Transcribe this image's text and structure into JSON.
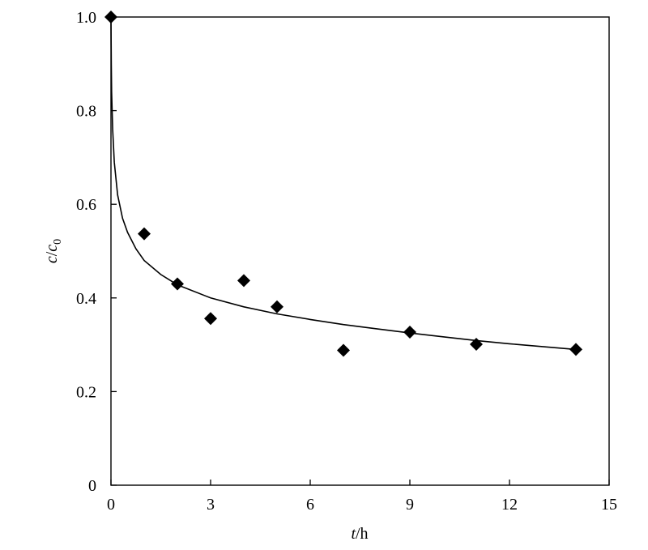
{
  "chart_data": {
    "type": "scatter",
    "title": "",
    "xlabel": {
      "var": "t",
      "unit": "/h"
    },
    "ylabel": {
      "var1": "c",
      "slash": "/",
      "var2": "c",
      "sub": "0"
    },
    "xlim": [
      0,
      15
    ],
    "ylim": [
      0,
      1.0
    ],
    "xticks": [
      0,
      3,
      6,
      9,
      12,
      15
    ],
    "xtick_labels": [
      "0",
      "3",
      "6",
      "9",
      "12",
      "15"
    ],
    "yticks": [
      0,
      0.2,
      0.4,
      0.6,
      0.8,
      1.0
    ],
    "ytick_labels": [
      "0",
      "0.2",
      "0.4",
      "0.6",
      "0.8",
      "1.0"
    ],
    "grid": false,
    "legend": "none",
    "series": [
      {
        "kind": "scatter",
        "marker": "diamond",
        "color": "#000000",
        "points": [
          {
            "x": 0,
            "y": 1.0
          },
          {
            "x": 1,
            "y": 0.537
          },
          {
            "x": 2,
            "y": 0.43
          },
          {
            "x": 3,
            "y": 0.356
          },
          {
            "x": 4,
            "y": 0.437
          },
          {
            "x": 5,
            "y": 0.381
          },
          {
            "x": 7,
            "y": 0.288
          },
          {
            "x": 9,
            "y": 0.327
          },
          {
            "x": 11,
            "y": 0.301
          },
          {
            "x": 14,
            "y": 0.29
          }
        ]
      },
      {
        "kind": "line",
        "color": "#000000",
        "points": [
          {
            "x": 0.0,
            "y": 1.0
          },
          {
            "x": 0.01,
            "y": 0.9
          },
          {
            "x": 0.02,
            "y": 0.84
          },
          {
            "x": 0.05,
            "y": 0.76
          },
          {
            "x": 0.1,
            "y": 0.69
          },
          {
            "x": 0.2,
            "y": 0.62
          },
          {
            "x": 0.35,
            "y": 0.57
          },
          {
            "x": 0.5,
            "y": 0.54
          },
          {
            "x": 0.75,
            "y": 0.505
          },
          {
            "x": 1.0,
            "y": 0.48
          },
          {
            "x": 1.5,
            "y": 0.45
          },
          {
            "x": 2.0,
            "y": 0.428
          },
          {
            "x": 3.0,
            "y": 0.4
          },
          {
            "x": 4.0,
            "y": 0.381
          },
          {
            "x": 5.0,
            "y": 0.366
          },
          {
            "x": 6.0,
            "y": 0.354
          },
          {
            "x": 7.0,
            "y": 0.343
          },
          {
            "x": 8.0,
            "y": 0.334
          },
          {
            "x": 9.0,
            "y": 0.325
          },
          {
            "x": 10.0,
            "y": 0.317
          },
          {
            "x": 11.0,
            "y": 0.309
          },
          {
            "x": 12.0,
            "y": 0.302
          },
          {
            "x": 13.0,
            "y": 0.296
          },
          {
            "x": 14.0,
            "y": 0.29
          }
        ]
      }
    ]
  }
}
